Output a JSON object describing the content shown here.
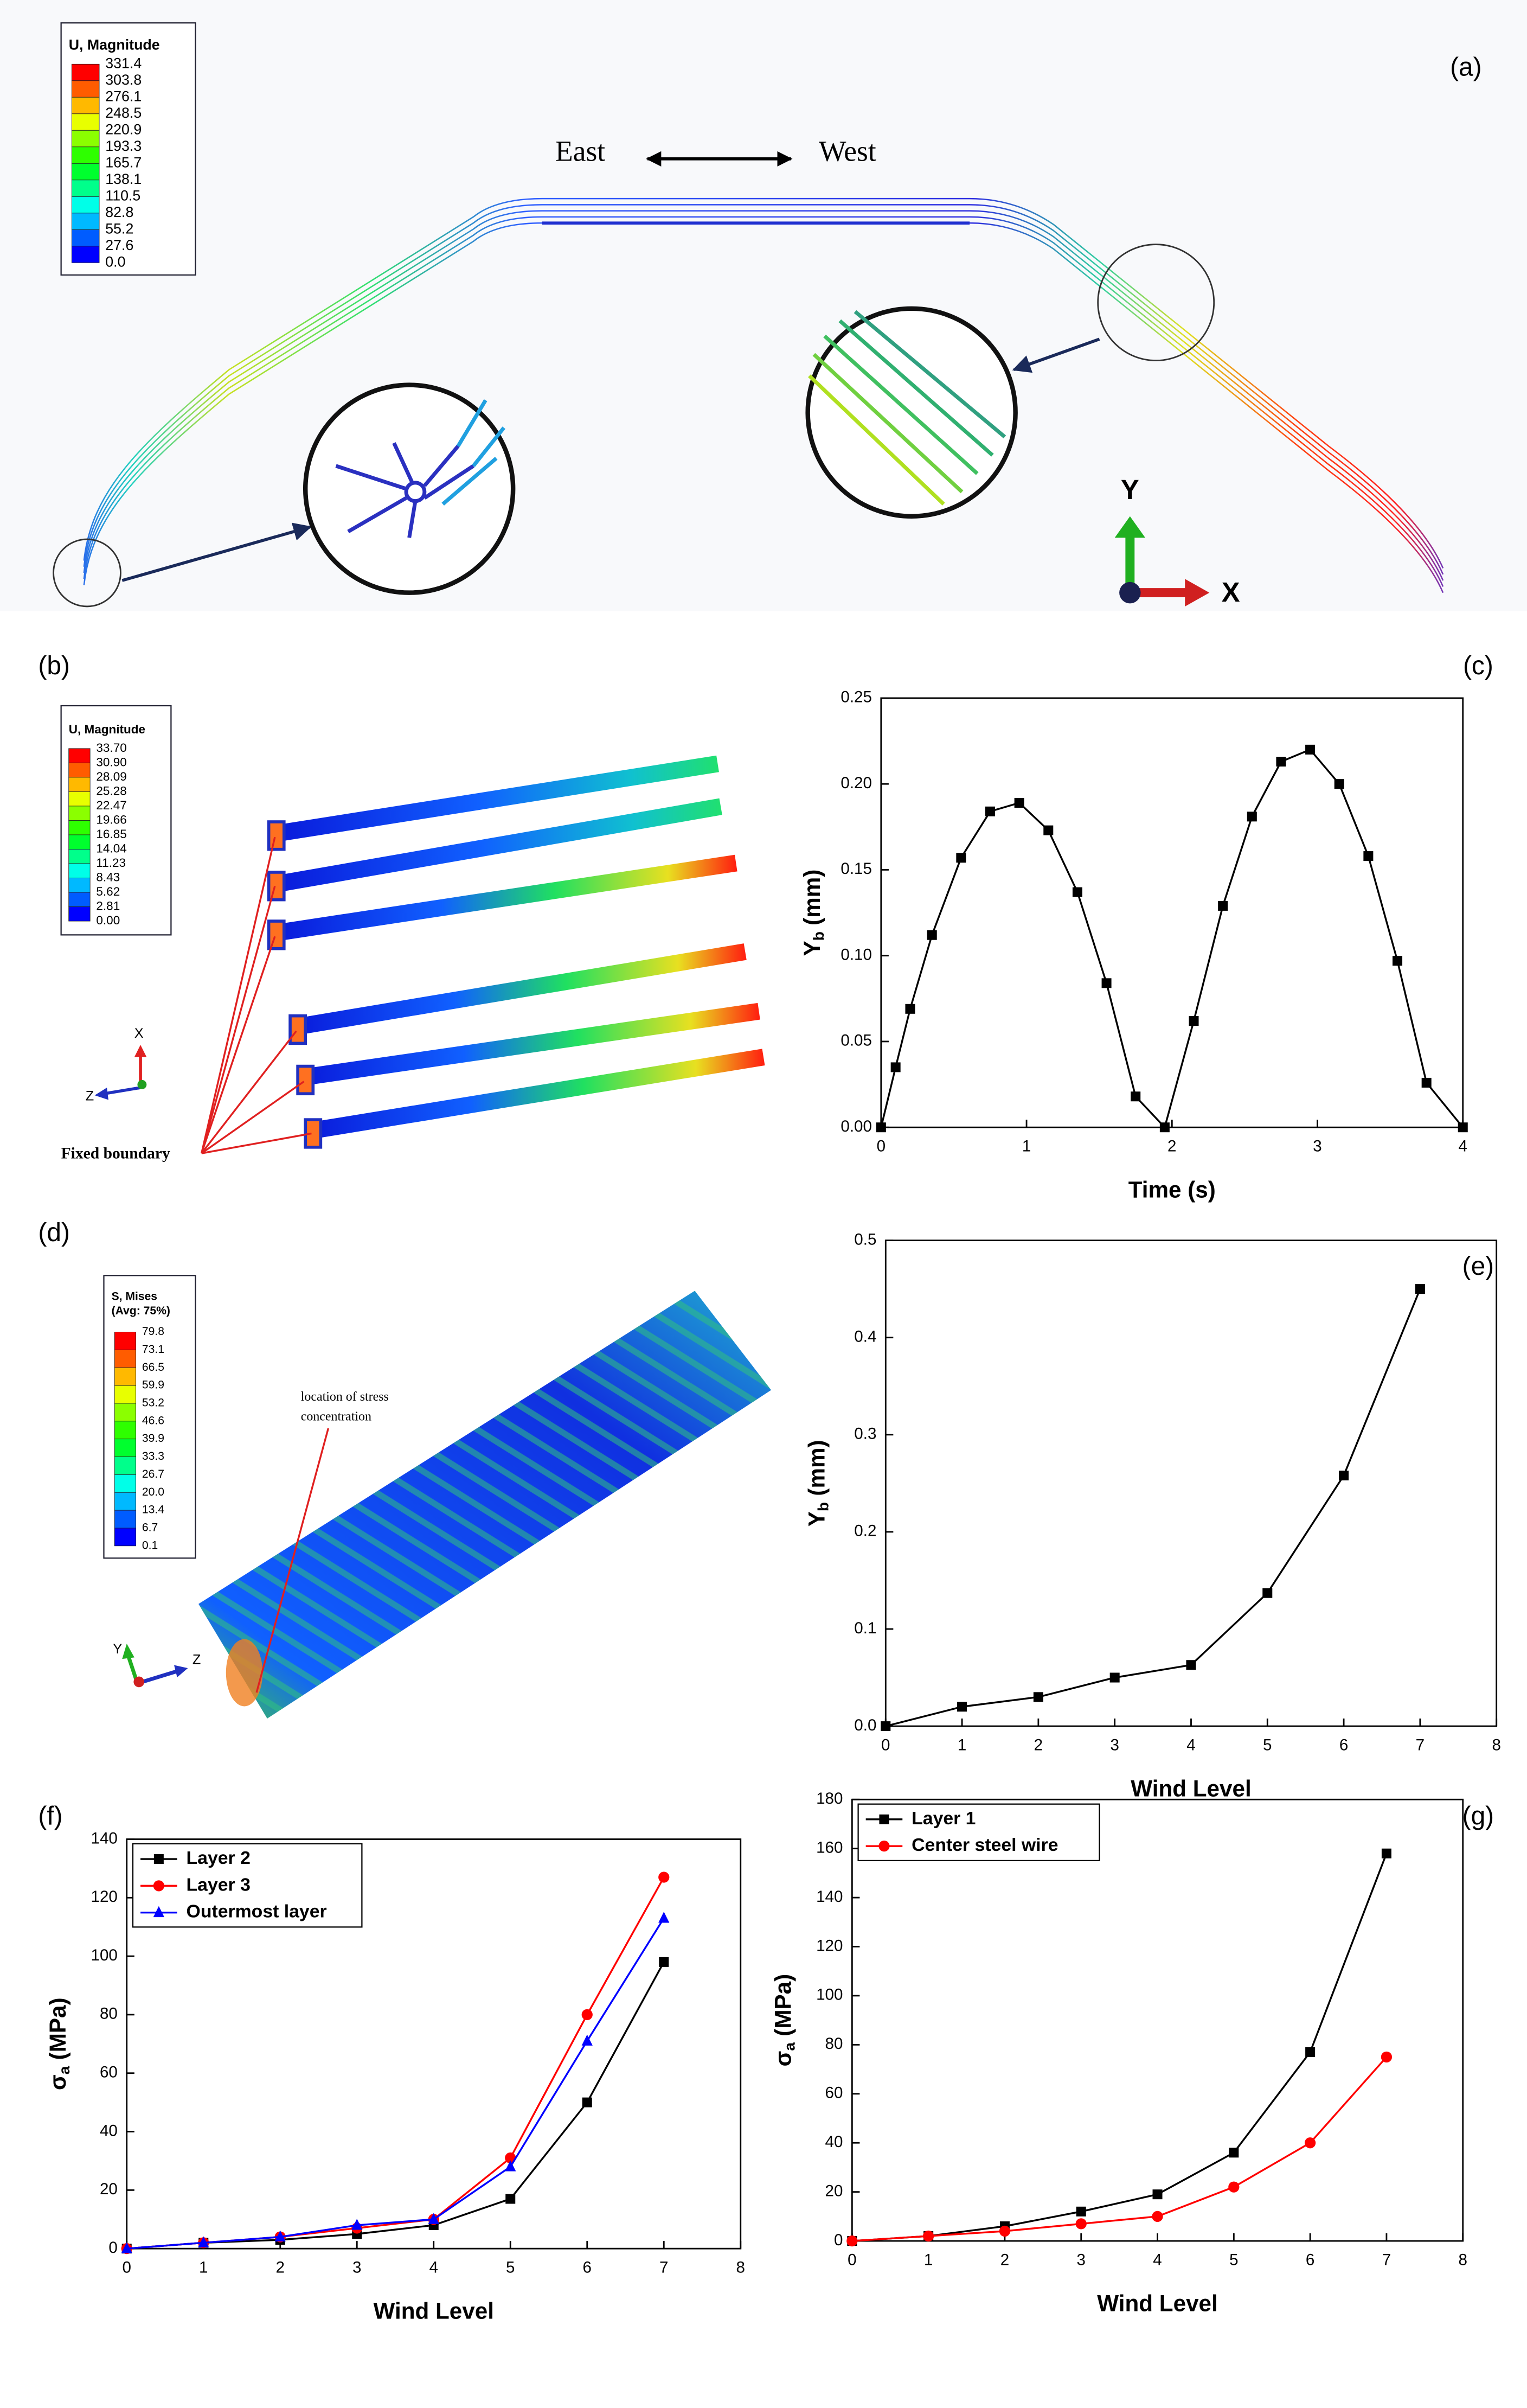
{
  "figure": {
    "colormap": [
      "#ff0000",
      "#ff5c00",
      "#ffb900",
      "#e8ff00",
      "#8bff00",
      "#2eff00",
      "#00ff2e",
      "#00ff8b",
      "#00ffe8",
      "#00b9ff",
      "#005cff",
      "#0000ff"
    ],
    "panel_a": {
      "label": "(a)",
      "legend_title": "U, Magnitude",
      "legend_values": [
        "331.4",
        "303.8",
        "276.1",
        "248.5",
        "220.9",
        "193.3",
        "165.7",
        "138.1",
        "110.5",
        "82.8",
        "55.2",
        "27.6",
        "0.0"
      ],
      "east": "East",
      "west": "West",
      "axis_y": "Y",
      "axis_x": "X"
    },
    "panel_b": {
      "label": "(b)",
      "legend_title": "U, Magnitude",
      "legend_values": [
        "33.70",
        "30.90",
        "28.09",
        "25.28",
        "22.47",
        "19.66",
        "16.85",
        "14.04",
        "11.23",
        "8.43",
        "5.62",
        "2.81",
        "0.00"
      ],
      "axis_x": "X",
      "axis_z": "Z",
      "annotation": "Fixed boundary"
    },
    "panel_d": {
      "label": "(d)",
      "legend_title": "S, Mises",
      "legend_subtitle": "(Avg: 75%)",
      "legend_values": [
        "79.8",
        "73.1",
        "66.5",
        "59.9",
        "53.2",
        "46.6",
        "39.9",
        "33.3",
        "26.7",
        "20.0",
        "13.4",
        "6.7",
        "0.1"
      ],
      "annotation_line1": "location of stress",
      "annotation_line2": "concentration",
      "axis_y": "Y",
      "axis_z": "Z"
    }
  },
  "chart_data": [
    {
      "type": "line",
      "panel_label": "(c)",
      "xlabel": "Time (s)",
      "ylabel": {
        "text": "Y",
        "sub": "b",
        "unit": "(mm)"
      },
      "x": [
        0,
        0.1,
        0.2,
        0.35,
        0.55,
        0.75,
        0.95,
        1.15,
        1.35,
        1.55,
        1.75,
        1.95,
        2.15,
        2.35,
        2.55,
        2.75,
        2.95,
        3.15,
        3.35,
        3.55,
        3.75,
        4
      ],
      "series": [
        {
          "color": "#000000",
          "marker": "square",
          "values": [
            0,
            0.035,
            0.069,
            0.112,
            0.157,
            0.184,
            0.189,
            0.173,
            0.137,
            0.084,
            0.018,
            0,
            0.062,
            0.129,
            0.181,
            0.213,
            0.22,
            0.2,
            0.158,
            0.097,
            0.026,
            0
          ]
        }
      ],
      "xlim": [
        0,
        4
      ],
      "xticks": [
        0,
        1,
        2,
        3,
        4
      ],
      "ylim": [
        0,
        0.25
      ],
      "yticks": [
        {
          "value": 0,
          "label": "0.00"
        },
        0.05,
        {
          "value": 0.1,
          "label": "0.10"
        },
        0.15,
        {
          "value": 0.2,
          "label": "0.20"
        },
        0.25
      ]
    },
    {
      "type": "line",
      "panel_label": "(e)",
      "xlabel": "Wind Level",
      "ylabel": {
        "text": "Y",
        "sub": "b",
        "unit": "(mm)"
      },
      "x": [
        0,
        1,
        2,
        3,
        4,
        5,
        6,
        7
      ],
      "series": [
        {
          "color": "#000000",
          "marker": "square",
          "values": [
            0,
            0.02,
            0.03,
            0.05,
            0.063,
            0.137,
            0.258,
            0.45
          ]
        }
      ],
      "xlim": [
        0,
        8
      ],
      "xticks": [
        0,
        1,
        2,
        3,
        4,
        5,
        6,
        7,
        8
      ],
      "ylim": [
        0,
        0.5
      ],
      "yticks": [
        {
          "value": 0,
          "label": "0.0"
        },
        0.1,
        0.2,
        0.3,
        0.4,
        0.5
      ]
    },
    {
      "type": "line",
      "panel_label": "(f)",
      "xlabel": "Wind Level",
      "ylabel": {
        "text": "σ",
        "sub": "a",
        "unit": "(MPa)"
      },
      "legend": "upper left",
      "x": [
        0,
        1,
        2,
        3,
        4,
        5,
        6,
        7
      ],
      "series": [
        {
          "name": "Layer 2",
          "color": "#000000",
          "marker": "square",
          "values": [
            0,
            2,
            3,
            5,
            8,
            17,
            50,
            98
          ]
        },
        {
          "name": "Layer 3",
          "color": "#ff0000",
          "marker": "circle",
          "values": [
            0,
            2,
            4,
            7,
            10,
            31,
            80,
            127
          ]
        },
        {
          "name": "Outermost layer",
          "color": "#0000ff",
          "marker": "triangle",
          "values": [
            0,
            2,
            4,
            8,
            10,
            28,
            71,
            113
          ]
        }
      ],
      "xlim": [
        0,
        8
      ],
      "xticks": [
        0,
        1,
        2,
        3,
        4,
        5,
        6,
        7,
        8
      ],
      "ylim": [
        0,
        140
      ],
      "yticks": [
        0,
        20,
        40,
        60,
        80,
        100,
        120,
        140
      ]
    },
    {
      "type": "line",
      "panel_label": "(g)",
      "xlabel": "Wind Level",
      "ylabel": {
        "text": "σ",
        "sub": "a",
        "unit": "(MPa)"
      },
      "legend": "upper left",
      "x": [
        0,
        1,
        2,
        3,
        4,
        5,
        6,
        7
      ],
      "series": [
        {
          "name": "Layer 1",
          "color": "#000000",
          "marker": "square",
          "values": [
            0,
            2,
            6,
            12,
            19,
            36,
            77,
            158
          ]
        },
        {
          "name": "Center steel wire",
          "color": "#ff0000",
          "marker": "circle",
          "values": [
            0,
            2,
            4,
            7,
            10,
            22,
            40,
            75
          ]
        }
      ],
      "xlim": [
        0,
        8
      ],
      "xticks": [
        0,
        1,
        2,
        3,
        4,
        5,
        6,
        7,
        8
      ],
      "ylim": [
        0,
        180
      ],
      "yticks": [
        0,
        20,
        40,
        60,
        80,
        100,
        120,
        140,
        160,
        180
      ]
    }
  ]
}
